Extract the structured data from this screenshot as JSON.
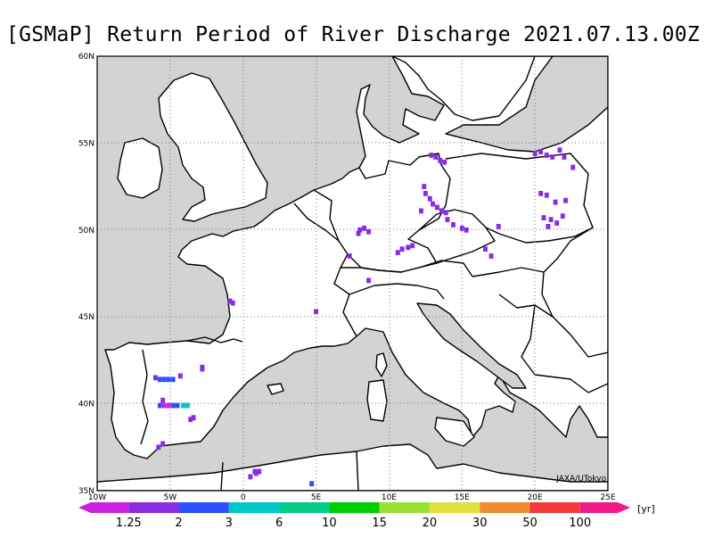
{
  "title": "[GSMaP] Return Period of River Discharge 2021.07.13.00Z",
  "credit": "JAXA/UTokyo",
  "map": {
    "lon_range": [
      -10,
      25
    ],
    "lat_range": [
      35,
      60
    ],
    "land_color": "#ffffff",
    "sea_color": "#d3d3d3",
    "lon_ticks": [
      {
        "value": -10,
        "label": "10W"
      },
      {
        "value": -5,
        "label": "5W"
      },
      {
        "value": 0,
        "label": "0"
      },
      {
        "value": 5,
        "label": "5E"
      },
      {
        "value": 10,
        "label": "10E"
      },
      {
        "value": 15,
        "label": "15E"
      },
      {
        "value": 20,
        "label": "20E"
      },
      {
        "value": 25,
        "label": "25E"
      }
    ],
    "lat_ticks": [
      {
        "value": 35,
        "label": "35N"
      },
      {
        "value": 40,
        "label": "40N"
      },
      {
        "value": 45,
        "label": "45N"
      },
      {
        "value": 50,
        "label": "50N"
      },
      {
        "value": 55,
        "label": "55N"
      },
      {
        "value": 60,
        "label": "60N"
      }
    ],
    "grid": "dotted"
  },
  "colorbar": {
    "unit": "[yr]",
    "colors": [
      "#cc22dd",
      "#8a2be2",
      "#2e4fff",
      "#00c8c8",
      "#00cc88",
      "#00cc00",
      "#99e033",
      "#e0e040",
      "#f08c30",
      "#f23a3a",
      "#f01a88"
    ],
    "labels": [
      "1.25",
      "2",
      "3",
      "6",
      "10",
      "15",
      "20",
      "30",
      "50",
      "100"
    ]
  },
  "chart_data": {
    "type": "heatmap",
    "title": "[GSMaP] Return Period of River Discharge 2021.07.13.00Z",
    "x_range": [
      -10,
      25
    ],
    "y_range": [
      35,
      60
    ],
    "cells": [
      {
        "lon": 12.9,
        "lat": 54.3,
        "rp": 1.5
      },
      {
        "lon": 13.2,
        "lat": 54.2,
        "rp": 1.5
      },
      {
        "lon": 13.5,
        "lat": 54.0,
        "rp": 1.5
      },
      {
        "lon": 13.8,
        "lat": 53.9,
        "rp": 1.5
      },
      {
        "lon": 12.4,
        "lat": 52.5,
        "rp": 1.5
      },
      {
        "lon": 12.5,
        "lat": 52.1,
        "rp": 1.5
      },
      {
        "lon": 12.8,
        "lat": 51.8,
        "rp": 1.5
      },
      {
        "lon": 13.0,
        "lat": 51.5,
        "rp": 1.5
      },
      {
        "lon": 13.3,
        "lat": 51.3,
        "rp": 1.5
      },
      {
        "lon": 13.6,
        "lat": 51.1,
        "rp": 1.5
      },
      {
        "lon": 12.2,
        "lat": 51.1,
        "rp": 1.5
      },
      {
        "lon": 13.9,
        "lat": 51.0,
        "rp": 1.5
      },
      {
        "lon": 14.0,
        "lat": 50.6,
        "rp": 1.5
      },
      {
        "lon": 14.4,
        "lat": 50.3,
        "rp": 1.5
      },
      {
        "lon": 15.0,
        "lat": 50.1,
        "rp": 1.5
      },
      {
        "lon": 15.3,
        "lat": 50.0,
        "rp": 1.5
      },
      {
        "lon": 8.0,
        "lat": 50.0,
        "rp": 1.5
      },
      {
        "lon": 8.3,
        "lat": 50.1,
        "rp": 1.5
      },
      {
        "lon": 8.6,
        "lat": 49.9,
        "rp": 1.5
      },
      {
        "lon": 7.9,
        "lat": 49.8,
        "rp": 1.5
      },
      {
        "lon": 10.9,
        "lat": 48.9,
        "rp": 1.5
      },
      {
        "lon": 11.3,
        "lat": 49.0,
        "rp": 1.5
      },
      {
        "lon": 11.6,
        "lat": 49.1,
        "rp": 1.5
      },
      {
        "lon": 10.6,
        "lat": 48.7,
        "rp": 1.5
      },
      {
        "lon": 7.3,
        "lat": 48.5,
        "rp": 1.5
      },
      {
        "lon": 8.6,
        "lat": 47.1,
        "rp": 1.5
      },
      {
        "lon": 16.6,
        "lat": 48.9,
        "rp": 1.5
      },
      {
        "lon": 17.0,
        "lat": 48.5,
        "rp": 1.5
      },
      {
        "lon": 17.5,
        "lat": 50.2,
        "rp": 1.5
      },
      {
        "lon": 20.0,
        "lat": 54.4,
        "rp": 1.5
      },
      {
        "lon": 20.4,
        "lat": 54.5,
        "rp": 1.5
      },
      {
        "lon": 20.8,
        "lat": 54.3,
        "rp": 1.5
      },
      {
        "lon": 21.2,
        "lat": 54.2,
        "rp": 1.5
      },
      {
        "lon": 21.7,
        "lat": 54.6,
        "rp": 1.5
      },
      {
        "lon": 22.0,
        "lat": 54.2,
        "rp": 1.5
      },
      {
        "lon": 22.6,
        "lat": 53.6,
        "rp": 1.5
      },
      {
        "lon": 20.4,
        "lat": 52.1,
        "rp": 1.5
      },
      {
        "lon": 20.8,
        "lat": 52.0,
        "rp": 1.5
      },
      {
        "lon": 21.4,
        "lat": 51.6,
        "rp": 1.5
      },
      {
        "lon": 22.1,
        "lat": 51.7,
        "rp": 1.5
      },
      {
        "lon": 20.6,
        "lat": 50.7,
        "rp": 1.5
      },
      {
        "lon": 21.1,
        "lat": 50.6,
        "rp": 1.5
      },
      {
        "lon": 21.5,
        "lat": 50.4,
        "rp": 1.5
      },
      {
        "lon": 21.9,
        "lat": 50.8,
        "rp": 1.5
      },
      {
        "lon": 20.9,
        "lat": 50.2,
        "rp": 1.5
      },
      {
        "lon": -0.7,
        "lat": 45.8,
        "rp": 1.5
      },
      {
        "lon": -0.9,
        "lat": 45.9,
        "rp": 1.5
      },
      {
        "lon": 5.0,
        "lat": 45.3,
        "rp": 1.5
      },
      {
        "lon": -2.8,
        "lat": 42.1,
        "rp": 1.5
      },
      {
        "lon": -2.8,
        "lat": 42.0,
        "rp": 1.5
      },
      {
        "lon": -6.0,
        "lat": 41.5,
        "rp": 1.5
      },
      {
        "lon": -4.3,
        "lat": 41.6,
        "rp": 1.5
      },
      {
        "lon": -5.5,
        "lat": 40.2,
        "rp": 1.5
      },
      {
        "lon": -3.6,
        "lat": 39.1,
        "rp": 1.5
      },
      {
        "lon": -3.4,
        "lat": 39.2,
        "rp": 1.5
      },
      {
        "lon": -5.8,
        "lat": 37.5,
        "rp": 1.5
      },
      {
        "lon": -5.5,
        "lat": 37.7,
        "rp": 1.5
      },
      {
        "lon": 0.5,
        "lat": 35.8,
        "rp": 1.5
      },
      {
        "lon": 0.8,
        "lat": 36.1,
        "rp": 1.5
      },
      {
        "lon": 1.1,
        "lat": 36.1,
        "rp": 1.5
      },
      {
        "lon": 0.9,
        "lat": 36.0,
        "rp": 1.5
      },
      {
        "lon": -5.7,
        "lat": 41.4,
        "rp": 2.5
      },
      {
        "lon": -5.4,
        "lat": 41.4,
        "rp": 2.5
      },
      {
        "lon": -5.1,
        "lat": 41.4,
        "rp": 2.5
      },
      {
        "lon": -4.8,
        "lat": 41.4,
        "rp": 2.5
      },
      {
        "lon": -5.7,
        "lat": 39.9,
        "rp": 2.5
      },
      {
        "lon": -4.8,
        "lat": 39.9,
        "rp": 2.5
      },
      {
        "lon": -4.5,
        "lat": 39.9,
        "rp": 2.5
      },
      {
        "lon": 4.7,
        "lat": 35.4,
        "rp": 2.5
      },
      {
        "lon": -4.1,
        "lat": 39.9,
        "rp": 4.0
      },
      {
        "lon": -3.8,
        "lat": 39.9,
        "rp": 4.0
      },
      {
        "lon": -5.4,
        "lat": 39.9,
        "rp": 1.1
      },
      {
        "lon": -5.1,
        "lat": 39.9,
        "rp": 1.1
      }
    ]
  }
}
